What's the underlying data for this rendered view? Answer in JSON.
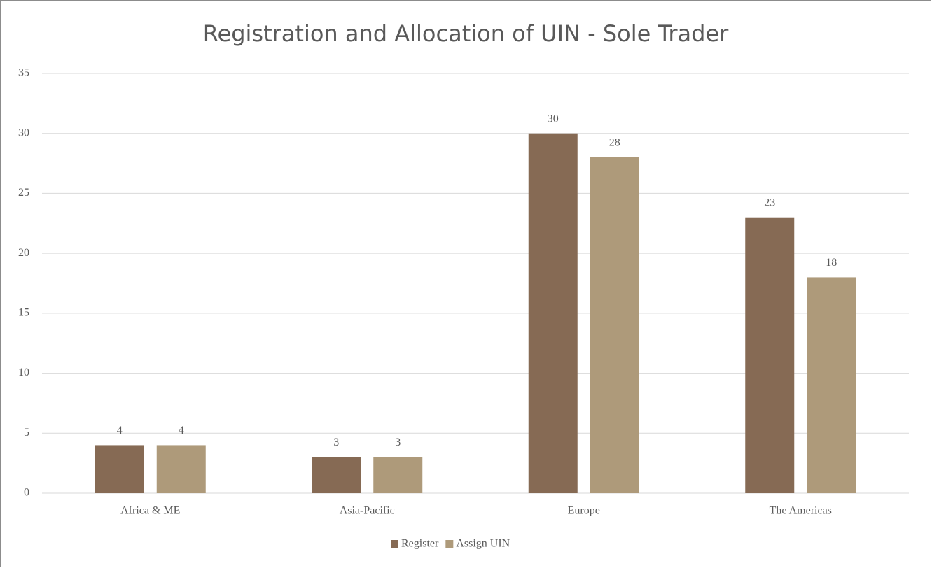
{
  "chart_data": {
    "type": "bar",
    "title": "Registration and Allocation of UIN - Sole Trader",
    "categories": [
      "Africa & ME",
      "Asia-Pacific",
      "Europe",
      "The Americas"
    ],
    "series": [
      {
        "name": "Register",
        "color": "#866a54",
        "values": [
          4,
          3,
          30,
          23
        ]
      },
      {
        "name": "Assign UIN",
        "color": "#ae9a7a",
        "values": [
          4,
          3,
          28,
          18
        ]
      }
    ],
    "ylim": [
      0,
      35
    ],
    "yticks": [
      0,
      5,
      10,
      15,
      20,
      25,
      30,
      35
    ],
    "grid": true,
    "legend": "bottom"
  }
}
